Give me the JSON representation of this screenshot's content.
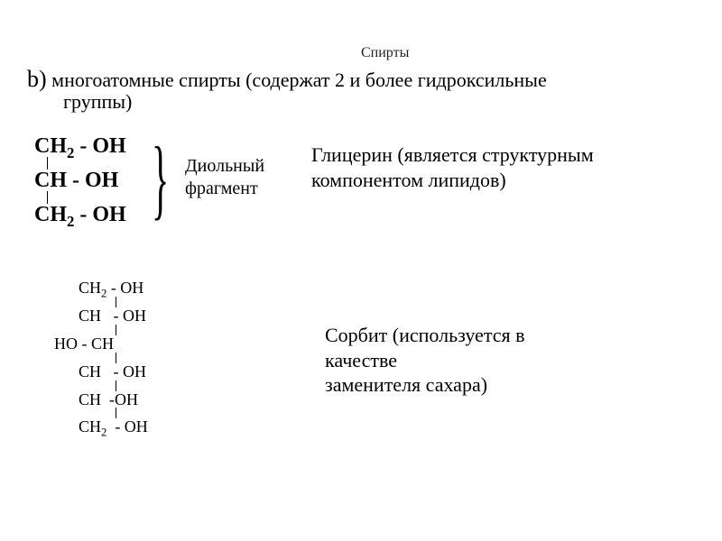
{
  "title": "Спирты",
  "bullet": {
    "letter": "b)",
    "text_line1": " многоатомные спирты (содержат 2 и более гидроксильные",
    "text_line2": "группы)"
  },
  "glycerol": {
    "line1_a": "CH",
    "line1_sub": "2",
    "line1_b": " - OH",
    "line2_a": "CH - OH",
    "line3_a": "CH",
    "line3_sub": "2",
    "line3_b": " - OH",
    "brace": "}",
    "diol_label_l1": "Диольный",
    "diol_label_l2": "фрагмент",
    "desc_l1": "Глицерин (является структурным",
    "desc_l2": "компонентом липидов)"
  },
  "sorbitol": {
    "r1_pre": "      CH",
    "r1_sub": "2",
    "r1_post": " - OH",
    "r2": "      CH   - OH",
    "r3": "HO - CH",
    "r4": "      CH   - OH",
    "r5": "      CH  -OH",
    "r6_pre": "      CH",
    "r6_sub": "2",
    "r6_post": "  - OH",
    "desc_l1": "Сорбит (используется в",
    "desc_l2": "качестве",
    "desc_l3": "заменителя сахара)"
  },
  "colors": {
    "background": "#ffffff",
    "text": "#000000"
  },
  "typography": {
    "font_family": "Times New Roman",
    "title_fontsize_pt": 12,
    "body_fontsize_pt": 17,
    "formula_fontsize_pt": 18,
    "formula_fontweight": "bold"
  }
}
